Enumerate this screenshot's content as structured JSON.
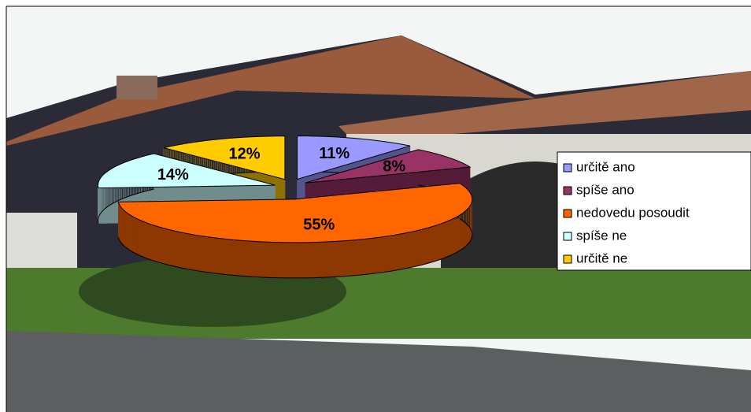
{
  "chart_data": {
    "type": "pie",
    "pie_3d": true,
    "categories": [
      "určitě ano",
      "spíše ano",
      "nedovedu posoudit",
      "spíše ne",
      "určitě ne"
    ],
    "values": [
      11,
      8,
      55,
      14,
      12
    ],
    "value_labels": [
      "11%",
      "8%",
      "55%",
      "14%",
      "12%"
    ],
    "colors": [
      "#9999ff",
      "#993366",
      "#ff6600",
      "#ccffff",
      "#ffcc00"
    ],
    "legend": "right"
  }
}
